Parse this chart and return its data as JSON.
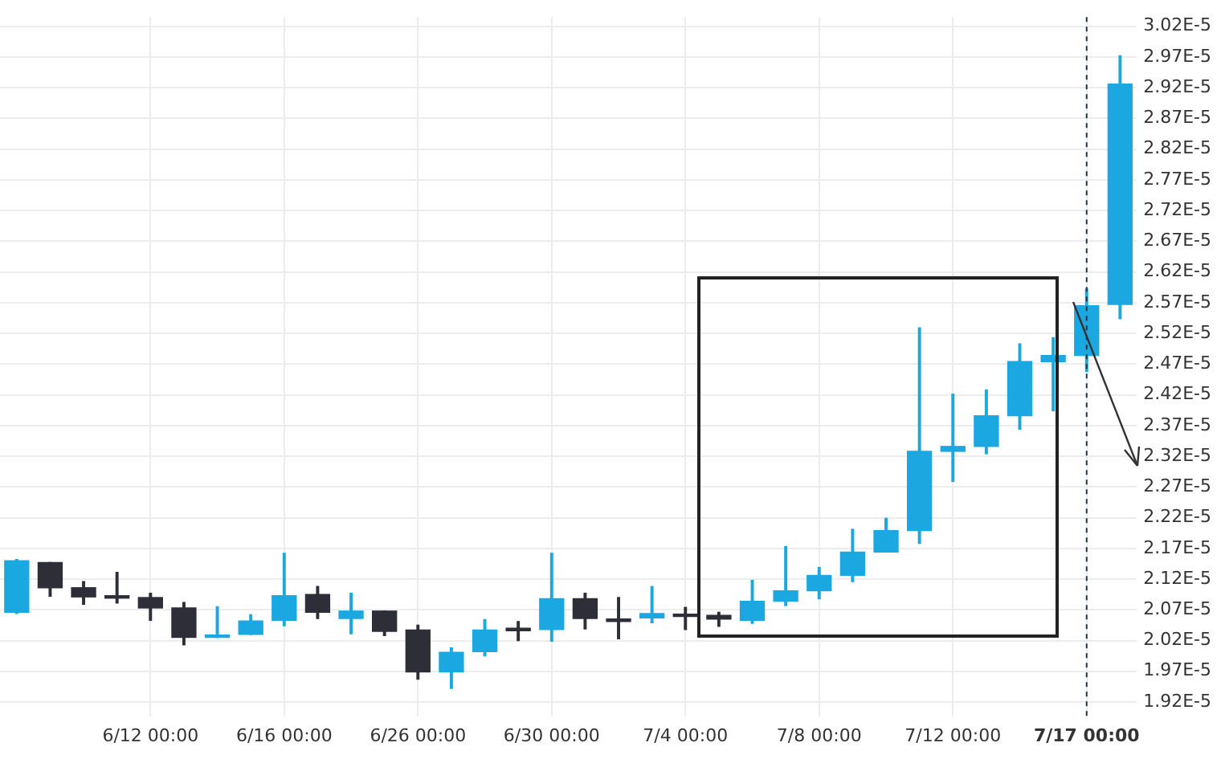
{
  "chart_data": {
    "type": "candlestick",
    "categories": [
      null,
      null,
      null,
      null,
      "6/12 00:00",
      null,
      null,
      null,
      "6/16 00:00",
      null,
      null,
      null,
      "6/26 00:00",
      null,
      null,
      null,
      "6/30 00:00",
      null,
      null,
      null,
      "7/4 00:00",
      null,
      null,
      null,
      "7/8 00:00",
      null,
      null,
      null,
      "7/12 00:00",
      null,
      null,
      null,
      "7/17 00:00",
      null
    ],
    "ohlc": [
      [
        2.066e-05,
        2.152e-05,
        2.064e-05,
        2.15e-05
      ],
      [
        2.147e-05,
        2.147e-05,
        2.092e-05,
        2.106e-05
      ],
      [
        2.106e-05,
        2.116e-05,
        2.079e-05,
        2.091e-05
      ],
      [
        2.093e-05,
        2.131e-05,
        2.081e-05,
        2.089e-05
      ],
      [
        2.09e-05,
        2.097e-05,
        2.053e-05,
        2.073e-05
      ],
      [
        2.073e-05,
        2.082e-05,
        2.013e-05,
        2.025e-05
      ],
      [
        2.025e-05,
        2.075e-05,
        2.025e-05,
        2.029e-05
      ],
      [
        2.03e-05,
        2.062e-05,
        2.03e-05,
        2.052e-05
      ],
      [
        2.053e-05,
        2.162e-05,
        2.044e-05,
        2.093e-05
      ],
      [
        2.095e-05,
        2.108e-05,
        2.056e-05,
        2.066e-05
      ],
      [
        2.056e-05,
        2.097e-05,
        2.031e-05,
        2.068e-05
      ],
      [
        2.068e-05,
        2.068e-05,
        2.028e-05,
        2.035e-05
      ],
      [
        2.037e-05,
        2.045e-05,
        1.957e-05,
        1.969e-05
      ],
      [
        1.969e-05,
        2.008e-05,
        1.942e-05,
        2.001e-05
      ],
      [
        2.002e-05,
        2.054e-05,
        1.995e-05,
        2.037e-05
      ],
      [
        2.04e-05,
        2.051e-05,
        2.02e-05,
        2.036e-05
      ],
      [
        2.038e-05,
        2.162e-05,
        2.019e-05,
        2.088e-05
      ],
      [
        2.088e-05,
        2.097e-05,
        2.039e-05,
        2.056e-05
      ],
      [
        2.055e-05,
        2.09e-05,
        2.023e-05,
        2.051e-05
      ],
      [
        2.057e-05,
        2.108e-05,
        2.049e-05,
        2.064e-05
      ],
      [
        2.063e-05,
        2.074e-05,
        2.038e-05,
        2.059e-05
      ],
      [
        2.061e-05,
        2.066e-05,
        2.043e-05,
        2.055e-05
      ],
      [
        2.053e-05,
        2.118e-05,
        2.048e-05,
        2.084e-05
      ],
      [
        2.084e-05,
        2.173e-05,
        2.077e-05,
        2.101e-05
      ],
      [
        2.101e-05,
        2.139e-05,
        2.088e-05,
        2.126e-05
      ],
      [
        2.126e-05,
        2.201e-05,
        2.116e-05,
        2.164e-05
      ],
      [
        2.164e-05,
        2.219e-05,
        2.164e-05,
        2.199e-05
      ],
      [
        2.199e-05,
        2.529e-05,
        2.178e-05,
        2.328e-05
      ],
      [
        2.328e-05,
        2.421e-05,
        2.279e-05,
        2.336e-05
      ],
      [
        2.336e-05,
        2.428e-05,
        2.324e-05,
        2.386e-05
      ],
      [
        2.386e-05,
        2.503e-05,
        2.364e-05,
        2.474e-05
      ],
      [
        2.474e-05,
        2.513e-05,
        2.394e-05,
        2.484e-05
      ],
      [
        2.484e-05,
        2.592e-05,
        2.458e-05,
        2.565e-05
      ],
      [
        2.567e-05,
        2.972e-05,
        2.544e-05,
        2.926e-05
      ]
    ],
    "colors": [
      "#1ba7e0",
      "#2d2e38",
      "#2d2e38",
      "#2d2e38",
      "#2d2e38",
      "#2d2e38",
      "#1ba7e0",
      "#1ba7e0",
      "#1ba7e0",
      "#2d2e38",
      "#1ba7e0",
      "#2d2e38",
      "#2d2e38",
      "#1ba7e0",
      "#1ba7e0",
      "#2d2e38",
      "#1ba7e0",
      "#2d2e38",
      "#2d2e38",
      "#1ba7e0",
      "#2d2e38",
      "#2d2e38",
      "#1ba7e0",
      "#1ba7e0",
      "#1ba7e0",
      "#1ba7e0",
      "#1ba7e0",
      "#1ba7e0",
      "#1ba7e0",
      "#1ba7e0",
      "#1ba7e0",
      "#1ba7e0",
      "#1ba7e0",
      "#1ba7e0"
    ],
    "ylim": [
      1.897e-05,
      3.035e-05
    ],
    "yticks": [
      {
        "value": 1.92e-05,
        "label": "1.92E-5"
      },
      {
        "value": 1.97e-05,
        "label": "1.97E-5"
      },
      {
        "value": 2.02e-05,
        "label": "2.02E-5"
      },
      {
        "value": 2.07e-05,
        "label": "2.07E-5"
      },
      {
        "value": 2.12e-05,
        "label": "2.12E-5"
      },
      {
        "value": 2.17e-05,
        "label": "2.17E-5"
      },
      {
        "value": 2.22e-05,
        "label": "2.22E-5"
      },
      {
        "value": 2.27e-05,
        "label": "2.27E-5"
      },
      {
        "value": 2.32e-05,
        "label": "2.32E-5"
      },
      {
        "value": 2.37e-05,
        "label": "2.37E-5"
      },
      {
        "value": 2.42e-05,
        "label": "2.42E-5"
      },
      {
        "value": 2.47e-05,
        "label": "2.47E-5"
      },
      {
        "value": 2.52e-05,
        "label": "2.52E-5"
      },
      {
        "value": 2.57e-05,
        "label": "2.57E-5"
      },
      {
        "value": 2.62e-05,
        "label": "2.62E-5"
      },
      {
        "value": 2.67e-05,
        "label": "2.67E-5"
      },
      {
        "value": 2.72e-05,
        "label": "2.72E-5"
      },
      {
        "value": 2.77e-05,
        "label": "2.77E-5"
      },
      {
        "value": 2.82e-05,
        "label": "2.82E-5"
      },
      {
        "value": 2.87e-05,
        "label": "2.87E-5"
      },
      {
        "value": 2.92e-05,
        "label": "2.92E-5"
      },
      {
        "value": 2.97e-05,
        "label": "2.97E-5"
      },
      {
        "value": 3.02e-05,
        "label": "3.02E-5"
      }
    ],
    "ref_lines": [
      {
        "axis": "x",
        "value": "7/17 00:00",
        "color": "#1f3550",
        "line_style": "dashed"
      }
    ],
    "grid": true,
    "legend": false
  }
}
